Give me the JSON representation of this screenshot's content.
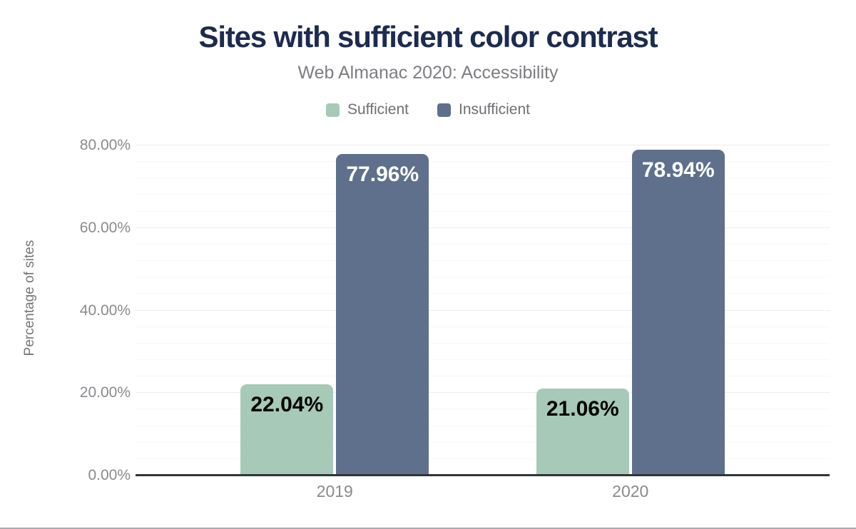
{
  "chart_data": {
    "type": "bar",
    "title": "Sites with sufficient color contrast",
    "subtitle": "Web Almanac 2020: Accessibility",
    "categories": [
      "2019",
      "2020"
    ],
    "series": [
      {
        "name": "Sufficient",
        "values": [
          22.04,
          21.06
        ],
        "labels": [
          "22.04%",
          "21.06%"
        ],
        "color": "#a7c9b8",
        "label_color": "#000000"
      },
      {
        "name": "Insufficient",
        "values": [
          77.96,
          78.94
        ],
        "labels": [
          "77.96%",
          "78.94%"
        ],
        "color": "#5e708c",
        "label_color": "#ffffff"
      }
    ],
    "xlabel": "",
    "ylabel": "Percentage of sites",
    "ylim": [
      0,
      80
    ],
    "yticks": [
      {
        "value": 0,
        "label": "0.00%"
      },
      {
        "value": 20,
        "label": "20.00%"
      },
      {
        "value": 40,
        "label": "40.00%"
      },
      {
        "value": 60,
        "label": "60.00%"
      },
      {
        "value": 80,
        "label": "80.00%"
      }
    ],
    "grid": {
      "minor_step": 4,
      "major_step": 20,
      "visible": true
    },
    "legend_position": "top",
    "colors": {
      "title": "#1d2b50",
      "axis_line": "#313438",
      "tick_text": "#8a8a8e"
    }
  }
}
